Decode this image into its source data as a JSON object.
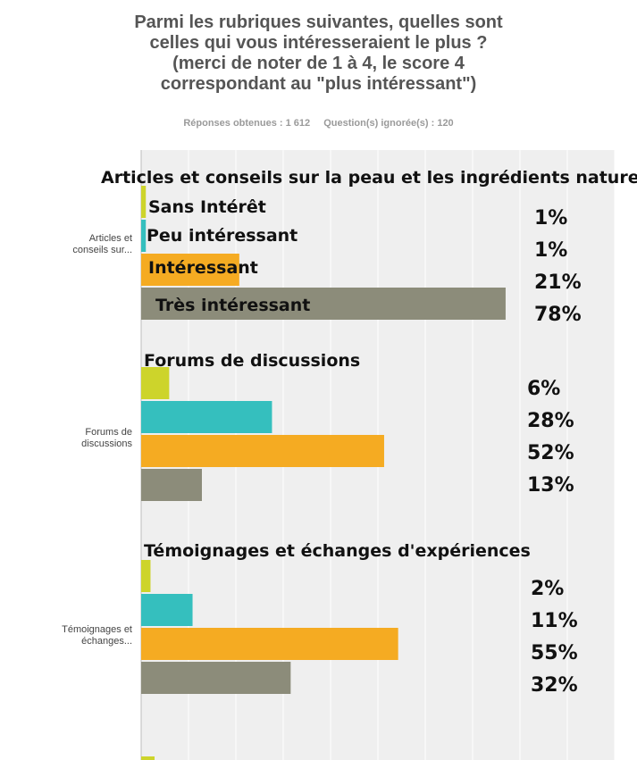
{
  "header": {
    "title_lines": [
      "Parmi les rubriques suivantes, quelles sont",
      "celles qui vous intéresseraient le plus ?",
      "(merci de noter de 1 à 4, le score 4",
      "correspondant au \"plus intéressant\")"
    ],
    "responses": "Réponses obtenues : 1 612",
    "ignored": "Question(s) ignorée(s) : 120"
  },
  "colors": {
    "sans_interet": "#cdd42b",
    "peu_interessant": "#35bfbe",
    "interessant": "#f5ab22",
    "tres_interessant": "#8c8c7a",
    "plot_background": "#efefef",
    "grid": "#ffffff"
  },
  "chart_data": {
    "type": "bar",
    "orientation": "horizontal",
    "categories": [
      "Articles et conseils sur...",
      "Forums de discussions",
      "Témoignages et échanges..."
    ],
    "series": [
      {
        "name": "Sans Intérêt",
        "values": [
          1,
          6,
          2
        ]
      },
      {
        "name": "Peu intéressant",
        "values": [
          1,
          28,
          11
        ]
      },
      {
        "name": "Intéressant",
        "values": [
          21,
          52,
          55
        ]
      },
      {
        "name": "Très intéressant",
        "values": [
          78,
          13,
          32
        ]
      }
    ],
    "xlim": [
      0,
      100
    ],
    "grid": true,
    "annotations": {
      "group_titles": [
        "Articles et conseils sur la peau et les ingrédients naturels",
        "Forums de discussions",
        "Témoignages et échanges d'expériences"
      ],
      "percent_labels": [
        [
          "1%",
          "1%",
          "21%",
          "78%"
        ],
        [
          "6%",
          "28%",
          "52%",
          "13%"
        ],
        [
          "2%",
          "11%",
          "55%",
          "32%"
        ]
      ]
    }
  }
}
